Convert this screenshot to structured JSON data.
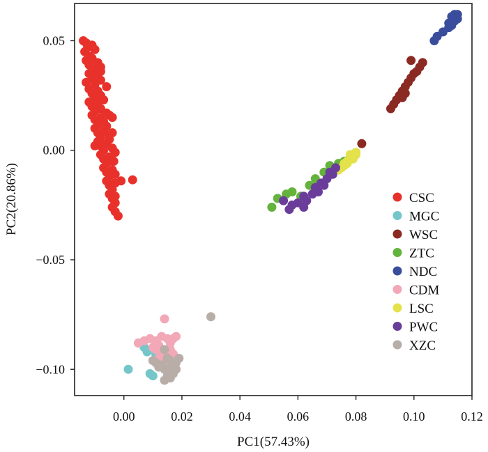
{
  "chart_data": {
    "type": "scatter",
    "title": "",
    "xlabel": "PC1(57.43%)",
    "ylabel": "PC2(20.86%)",
    "xlim": [
      -0.017,
      0.12
    ],
    "ylim": [
      -0.112,
      0.067
    ],
    "xticks": [
      0.0,
      0.02,
      0.04,
      0.06,
      0.08,
      0.1,
      0.12
    ],
    "xtick_labels": [
      "0.00",
      "0.02",
      "0.04",
      "0.06",
      "0.08",
      "0.10",
      "0.12"
    ],
    "yticks": [
      -0.1,
      -0.05,
      0.0,
      0.05
    ],
    "ytick_labels": [
      "−0.10",
      "−0.05",
      "0.00",
      "0.05"
    ],
    "grid": false,
    "legend_position": "right",
    "series": [
      {
        "name": "CSC",
        "color": "#e8312a",
        "points": [
          [
            -0.014,
            0.05
          ],
          [
            -0.013,
            0.049
          ],
          [
            -0.0125,
            0.047
          ],
          [
            -0.0135,
            0.045
          ],
          [
            -0.012,
            0.043
          ],
          [
            -0.011,
            0.048
          ],
          [
            -0.01,
            0.046
          ],
          [
            -0.013,
            0.041
          ],
          [
            -0.012,
            0.039
          ],
          [
            -0.011,
            0.042
          ],
          [
            -0.009,
            0.04
          ],
          [
            -0.01,
            0.037
          ],
          [
            -0.008,
            0.038
          ],
          [
            -0.012,
            0.035
          ],
          [
            -0.011,
            0.033
          ],
          [
            -0.013,
            0.031
          ],
          [
            -0.01,
            0.03
          ],
          [
            -0.009,
            0.034
          ],
          [
            -0.008,
            0.032
          ],
          [
            -0.012,
            0.028
          ],
          [
            -0.011,
            0.026
          ],
          [
            -0.01,
            0.024
          ],
          [
            -0.009,
            0.027
          ],
          [
            -0.008,
            0.025
          ],
          [
            -0.012,
            0.022
          ],
          [
            -0.011,
            0.02
          ],
          [
            -0.01,
            0.018
          ],
          [
            -0.009,
            0.021
          ],
          [
            -0.008,
            0.019
          ],
          [
            -0.007,
            0.023
          ],
          [
            -0.011,
            0.016
          ],
          [
            -0.01,
            0.014
          ],
          [
            -0.009,
            0.012
          ],
          [
            -0.008,
            0.015
          ],
          [
            -0.007,
            0.013
          ],
          [
            -0.006,
            0.017
          ],
          [
            -0.01,
            0.01
          ],
          [
            -0.009,
            0.008
          ],
          [
            -0.008,
            0.006
          ],
          [
            -0.007,
            0.009
          ],
          [
            -0.006,
            0.011
          ],
          [
            -0.005,
            0.007
          ],
          [
            -0.009,
            0.004
          ],
          [
            -0.008,
            0.002
          ],
          [
            -0.007,
            0.0
          ],
          [
            -0.006,
            0.003
          ],
          [
            -0.005,
            0.005
          ],
          [
            -0.004,
            0.001
          ],
          [
            -0.008,
            -0.002
          ],
          [
            -0.007,
            -0.004
          ],
          [
            -0.006,
            -0.006
          ],
          [
            -0.005,
            -0.003
          ],
          [
            -0.004,
            -0.005
          ],
          [
            -0.003,
            -0.001
          ],
          [
            -0.007,
            -0.008
          ],
          [
            -0.006,
            -0.01
          ],
          [
            -0.005,
            -0.012
          ],
          [
            -0.004,
            -0.009
          ],
          [
            -0.003,
            -0.011
          ],
          [
            -0.006,
            -0.014
          ],
          [
            -0.005,
            -0.016
          ],
          [
            -0.004,
            -0.018
          ],
          [
            -0.003,
            -0.015
          ],
          [
            -0.005,
            -0.02
          ],
          [
            -0.004,
            -0.022
          ],
          [
            -0.003,
            -0.024
          ],
          [
            -0.004,
            -0.026
          ],
          [
            -0.003,
            -0.028
          ],
          [
            -0.002,
            -0.03
          ],
          [
            -0.003,
            -0.021
          ],
          [
            -0.006,
            0.029
          ],
          [
            -0.005,
            0.016
          ],
          [
            -0.008,
            0.036
          ],
          [
            -0.004,
            0.008
          ],
          [
            -0.01,
            0.002
          ],
          [
            -0.004,
            0.015
          ],
          [
            -0.001,
            -0.014
          ],
          [
            -0.0035,
            -0.005
          ],
          [
            0.003,
            -0.0135
          ]
        ]
      },
      {
        "name": "MGC",
        "color": "#75c6c8",
        "points": [
          [
            0.005,
            -0.088
          ],
          [
            0.0015,
            -0.1
          ],
          [
            0.009,
            -0.102
          ],
          [
            0.01,
            -0.103
          ],
          [
            0.008,
            -0.092
          ],
          [
            0.011,
            -0.093
          ],
          [
            0.012,
            -0.094
          ],
          [
            0.007,
            -0.09
          ]
        ]
      },
      {
        "name": "WSC",
        "color": "#8b2a22",
        "points": [
          [
            0.082,
            0.003
          ],
          [
            0.092,
            0.019
          ],
          [
            0.093,
            0.021
          ],
          [
            0.094,
            0.023
          ],
          [
            0.095,
            0.025
          ],
          [
            0.096,
            0.027
          ],
          [
            0.097,
            0.029
          ],
          [
            0.098,
            0.031
          ],
          [
            0.099,
            0.033
          ],
          [
            0.1,
            0.035
          ],
          [
            0.101,
            0.036
          ],
          [
            0.102,
            0.038
          ],
          [
            0.103,
            0.04
          ],
          [
            0.099,
            0.041
          ],
          [
            0.097,
            0.026
          ],
          [
            0.096,
            0.024
          ]
        ]
      },
      {
        "name": "ZTC",
        "color": "#64b33c",
        "points": [
          [
            0.051,
            -0.026
          ],
          [
            0.053,
            -0.022
          ],
          [
            0.056,
            -0.02
          ],
          [
            0.058,
            -0.019
          ],
          [
            0.061,
            -0.021
          ],
          [
            0.064,
            -0.016
          ],
          [
            0.066,
            -0.013
          ],
          [
            0.069,
            -0.01
          ],
          [
            0.072,
            -0.009
          ],
          [
            0.074,
            -0.006
          ],
          [
            0.076,
            -0.005
          ],
          [
            0.078,
            -0.003
          ],
          [
            0.08,
            -0.001
          ],
          [
            0.071,
            -0.007
          ]
        ]
      },
      {
        "name": "NDC",
        "color": "#3a4d9c",
        "points": [
          [
            0.107,
            0.05
          ],
          [
            0.108,
            0.052
          ],
          [
            0.11,
            0.054
          ],
          [
            0.112,
            0.056
          ],
          [
            0.113,
            0.058
          ],
          [
            0.114,
            0.06
          ],
          [
            0.115,
            0.062
          ],
          [
            0.113,
            0.061
          ],
          [
            0.114,
            0.059
          ],
          [
            0.112,
            0.058
          ],
          [
            0.115,
            0.06
          ],
          [
            0.114,
            0.062
          ],
          [
            0.113,
            0.057
          ]
        ]
      },
      {
        "name": "CDM",
        "color": "#f2a8b6",
        "points": [
          [
            0.014,
            -0.077
          ],
          [
            0.005,
            -0.088
          ],
          [
            0.007,
            -0.087
          ],
          [
            0.009,
            -0.086
          ],
          [
            0.011,
            -0.087
          ],
          [
            0.012,
            -0.089
          ],
          [
            0.013,
            -0.085
          ],
          [
            0.015,
            -0.086
          ],
          [
            0.016,
            -0.088
          ],
          [
            0.017,
            -0.086
          ],
          [
            0.018,
            -0.085
          ],
          [
            0.01,
            -0.09
          ],
          [
            0.011,
            -0.091
          ],
          [
            0.013,
            -0.093
          ],
          [
            0.015,
            -0.092
          ],
          [
            0.016,
            -0.094
          ],
          [
            0.014,
            -0.096
          ],
          [
            0.012,
            -0.095
          ],
          [
            0.016,
            -0.091
          ],
          [
            0.017,
            -0.093
          ]
        ]
      },
      {
        "name": "LSC",
        "color": "#e4e24a",
        "points": [
          [
            0.074,
            -0.009
          ],
          [
            0.075,
            -0.008
          ],
          [
            0.076,
            -0.007
          ],
          [
            0.077,
            -0.006
          ],
          [
            0.078,
            -0.004
          ],
          [
            0.079,
            -0.003
          ],
          [
            0.08,
            -0.001
          ],
          [
            0.077,
            -0.005
          ],
          [
            0.076,
            -0.006
          ],
          [
            0.078,
            -0.002
          ],
          [
            0.079,
            -0.004
          ],
          [
            0.08,
            -0.002
          ]
        ]
      },
      {
        "name": "PWC",
        "color": "#6a3d9a",
        "points": [
          [
            0.055,
            -0.023
          ],
          [
            0.058,
            -0.025
          ],
          [
            0.06,
            -0.024
          ],
          [
            0.062,
            -0.021
          ],
          [
            0.063,
            -0.023
          ],
          [
            0.065,
            -0.02
          ],
          [
            0.066,
            -0.017
          ],
          [
            0.067,
            -0.019
          ],
          [
            0.068,
            -0.015
          ],
          [
            0.069,
            -0.016
          ],
          [
            0.07,
            -0.013
          ],
          [
            0.071,
            -0.01
          ],
          [
            0.072,
            -0.011
          ],
          [
            0.073,
            -0.008
          ],
          [
            0.057,
            -0.027
          ],
          [
            0.062,
            -0.026
          ]
        ]
      },
      {
        "name": "XZC",
        "color": "#b8ada7",
        "points": [
          [
            0.03,
            -0.076
          ],
          [
            0.014,
            -0.091
          ],
          [
            0.013,
            -0.098
          ],
          [
            0.014,
            -0.1
          ],
          [
            0.015,
            -0.101
          ],
          [
            0.016,
            -0.099
          ],
          [
            0.017,
            -0.098
          ],
          [
            0.018,
            -0.097
          ],
          [
            0.015,
            -0.103
          ],
          [
            0.016,
            -0.104
          ],
          [
            0.014,
            -0.105
          ],
          [
            0.017,
            -0.102
          ],
          [
            0.018,
            -0.1
          ],
          [
            0.016,
            -0.096
          ],
          [
            0.011,
            -0.097
          ],
          [
            0.01,
            -0.096
          ],
          [
            0.012,
            -0.099
          ],
          [
            0.019,
            -0.095
          ],
          [
            0.015,
            -0.095
          ]
        ]
      }
    ]
  }
}
